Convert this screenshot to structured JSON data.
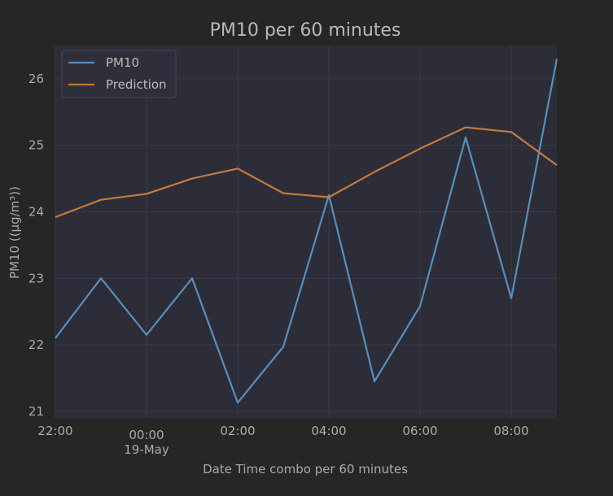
{
  "chart_data": {
    "type": "line",
    "title": "PM10 per 60 minutes",
    "xlabel": "Date Time combo per 60 minutes",
    "ylabel": "PM10 ((µg/m³))",
    "x": [
      "22:00",
      "23:00",
      "00:00",
      "01:00",
      "02:00",
      "03:00",
      "04:00",
      "05:00",
      "06:00",
      "07:00",
      "08:00",
      "09:00"
    ],
    "x_ticks": [
      {
        "label": "22:00",
        "sublabel": ""
      },
      {
        "label": "00:00",
        "sublabel": "19-May"
      },
      {
        "label": "02:00",
        "sublabel": ""
      },
      {
        "label": "04:00",
        "sublabel": ""
      },
      {
        "label": "06:00",
        "sublabel": ""
      },
      {
        "label": "08:00",
        "sublabel": ""
      }
    ],
    "y_ticks": [
      21,
      22,
      23,
      24,
      25,
      26
    ],
    "ylim": [
      20.9,
      26.5
    ],
    "grid": true,
    "legend_position": "top-left",
    "series": [
      {
        "name": "PM10",
        "color": "#5b8db8",
        "values": [
          22.1,
          23.0,
          22.15,
          23.0,
          21.13,
          21.97,
          24.25,
          21.45,
          22.58,
          25.12,
          22.7,
          26.3
        ]
      },
      {
        "name": "Prediction",
        "color": "#c27a3e",
        "values": [
          23.92,
          24.18,
          24.27,
          24.5,
          24.65,
          24.28,
          24.22,
          24.6,
          24.95,
          25.27,
          25.2,
          24.7
        ]
      }
    ],
    "colors": {
      "plot_bg": "#2d2d3a",
      "page_bg": "#262626",
      "grid": "#3a3a48"
    }
  }
}
